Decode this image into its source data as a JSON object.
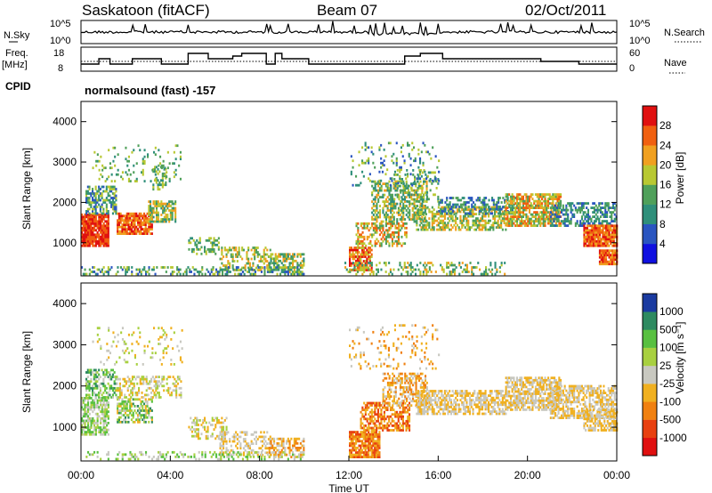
{
  "header": {
    "station": "Saskatoon (fitACF)",
    "beam": "Beam 07",
    "date": "02/Oct/2011"
  },
  "aux": {
    "nsky_label": "N.Sky",
    "nsearch_label": "N.Search",
    "freq_label_line1": "Freq.",
    "freq_label_line2": "[MHz]",
    "nave_label": "Nave",
    "cpid_label": "CPID",
    "mode_text": "normalsound (fast) -157",
    "noise_ticks": [
      "10^5",
      "10^0"
    ],
    "noise_right_ticks": [
      "10^5",
      "10^0"
    ],
    "freq_ticks": [
      "18",
      "8"
    ],
    "nave_ticks": [
      "60",
      "0"
    ]
  },
  "chart_data": [
    {
      "type": "heatmap",
      "panel": "power",
      "xlabel": "",
      "ylabel": "Slant Range [km]",
      "ylim": [
        180,
        4500
      ],
      "xlim": [
        0,
        24
      ],
      "y_ticks": [
        "1000",
        "2000",
        "3000",
        "4000"
      ],
      "colorbar_label": "Power [dB]",
      "colorbar_ticks": [
        "4",
        "8",
        "12",
        "16",
        "20",
        "24",
        "28"
      ],
      "colorbar_colors": [
        "#1010e0",
        "#2a55c0",
        "#2f8f7a",
        "#4fa05a",
        "#b8c832",
        "#f0a020",
        "#f06010",
        "#e01010"
      ]
    },
    {
      "type": "heatmap",
      "panel": "velocity",
      "xlabel": "Time UT",
      "ylabel": "Slant Range [km]",
      "ylim": [
        180,
        4500
      ],
      "xlim": [
        0,
        24
      ],
      "y_ticks": [
        "1000",
        "2000",
        "3000",
        "4000"
      ],
      "x_ticks": [
        "00:00",
        "04:00",
        "08:00",
        "12:00",
        "16:00",
        "20:00",
        "00:00"
      ],
      "colorbar_label": "Velocity [m s⁻¹]",
      "colorbar_ticks": [
        "1000",
        "500",
        "100",
        "25",
        "-25",
        "-100",
        "-500",
        "-1000"
      ],
      "colorbar_colors": [
        "#1a3aa0",
        "#2e8a60",
        "#58c040",
        "#a8d040",
        "#c8c8c0",
        "#f0b020",
        "#f08010",
        "#e84010",
        "#e01010"
      ]
    }
  ]
}
